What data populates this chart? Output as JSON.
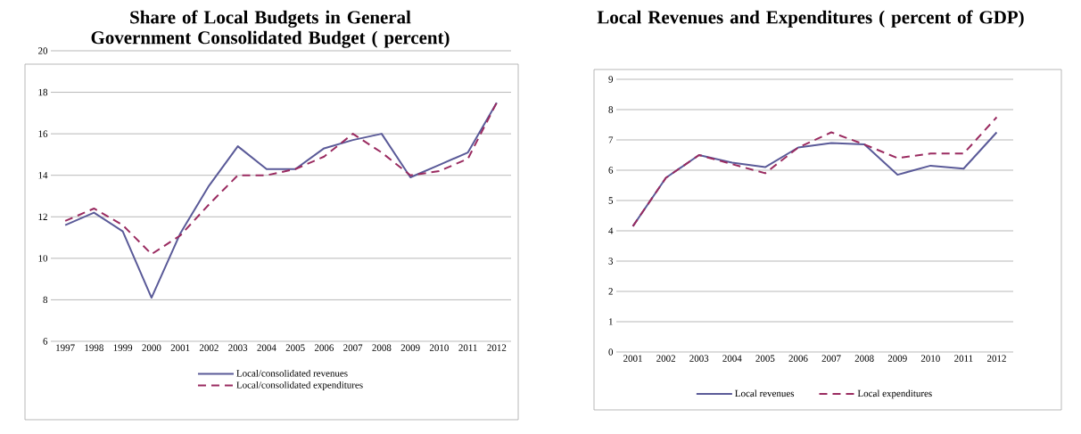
{
  "chart_data": [
    {
      "type": "line",
      "title": "Share of Local Budgets in General Government Consolidated Budget ( percent)",
      "categories": [
        "1997",
        "1998",
        "1999",
        "2000",
        "2001",
        "2002",
        "2003",
        "2004",
        "2005",
        "2006",
        "2007",
        "2008",
        "2009",
        "2010",
        "2011",
        "2012"
      ],
      "series": [
        {
          "name": "Local/consolidated revenues",
          "color": "#5a5a98",
          "line_style": "solid",
          "values": [
            11.6,
            12.2,
            11.3,
            8.1,
            11.2,
            13.5,
            15.4,
            14.3,
            14.3,
            15.3,
            15.7,
            16.0,
            13.9,
            14.5,
            15.1,
            17.5
          ]
        },
        {
          "name": "Local/consolidated expenditures",
          "color": "#9a2b60",
          "line_style": "dashed",
          "values": [
            11.8,
            12.4,
            11.6,
            10.2,
            11.1,
            12.6,
            14.0,
            14.0,
            14.3,
            14.9,
            16.0,
            15.1,
            14.0,
            14.2,
            14.8,
            17.5
          ]
        }
      ],
      "ylim": [
        6,
        20
      ],
      "yticks": [
        6,
        8,
        10,
        12,
        14,
        16,
        18,
        20
      ],
      "grid": "y",
      "legend": "bottom"
    },
    {
      "type": "line",
      "title": "Local Revenues and Expenditures ( percent of GDP)",
      "categories": [
        "2001",
        "2002",
        "2003",
        "2004",
        "2005",
        "2006",
        "2007",
        "2008",
        "2009",
        "2010",
        "2011",
        "2012"
      ],
      "series": [
        {
          "name": "Local revenues",
          "color": "#5a5a98",
          "line_style": "solid",
          "values": [
            4.15,
            5.75,
            6.5,
            6.25,
            6.1,
            6.75,
            6.9,
            6.85,
            5.85,
            6.15,
            6.05,
            7.25
          ]
        },
        {
          "name": "Local expenditures",
          "color": "#9a2b60",
          "line_style": "dashed",
          "values": [
            4.15,
            5.75,
            6.5,
            6.2,
            5.9,
            6.75,
            7.25,
            6.85,
            6.4,
            6.55,
            6.55,
            7.75
          ]
        }
      ],
      "ylim": [
        0,
        9
      ],
      "yticks": [
        0,
        1,
        2,
        3,
        4,
        5,
        6,
        7,
        8,
        9
      ],
      "grid": "y",
      "legend": "bottom"
    }
  ]
}
